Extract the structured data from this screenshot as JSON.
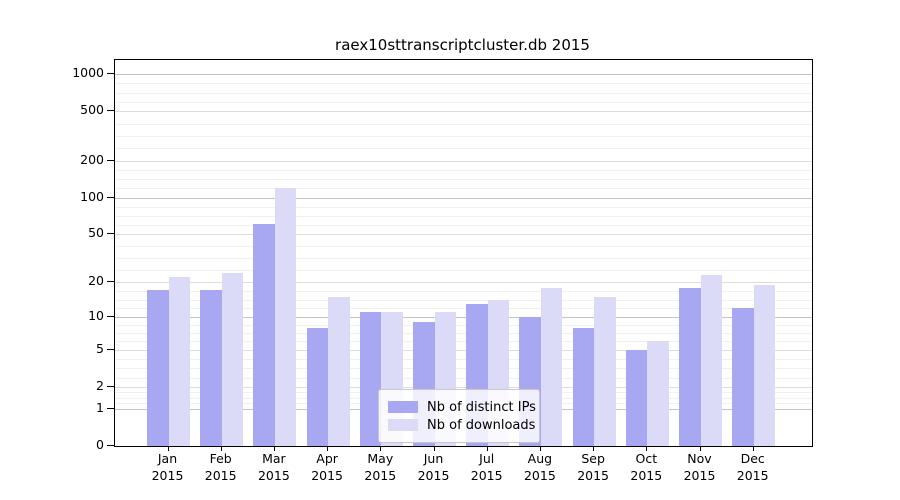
{
  "chart_data": {
    "type": "bar",
    "title": "raex10sttranscriptcluster.db 2015",
    "categories": [
      "Jan",
      "Feb",
      "Mar",
      "Apr",
      "May",
      "Jun",
      "Jul",
      "Aug",
      "Sep",
      "Oct",
      "Nov",
      "Dec"
    ],
    "year": "2015",
    "series": [
      {
        "name": "Nb of distinct IPs",
        "color": "#a7a7f2",
        "values": [
          17,
          17,
          61,
          8,
          11,
          9,
          13,
          10,
          8,
          5,
          18,
          12
        ]
      },
      {
        "name": "Nb of downloads",
        "color": "#dbdbf8",
        "values": [
          22,
          24,
          120,
          15,
          11,
          11,
          14,
          18,
          15,
          6,
          23,
          19
        ]
      }
    ],
    "xlabel": "",
    "ylabel": "",
    "y_scale": "log10(1+x)",
    "y_ticks": [
      0,
      1,
      2,
      5,
      10,
      20,
      50,
      100,
      200,
      500,
      1000
    ],
    "ylim": [
      0,
      1300
    ],
    "grid": true,
    "legend_position": "bottom-center",
    "colors": {
      "spine": "#000000",
      "grid_major": "#c3c3c3",
      "grid_labeled": "#dcdcdc",
      "grid_minor": "#f0f0f0",
      "background": "#ffffff"
    }
  }
}
